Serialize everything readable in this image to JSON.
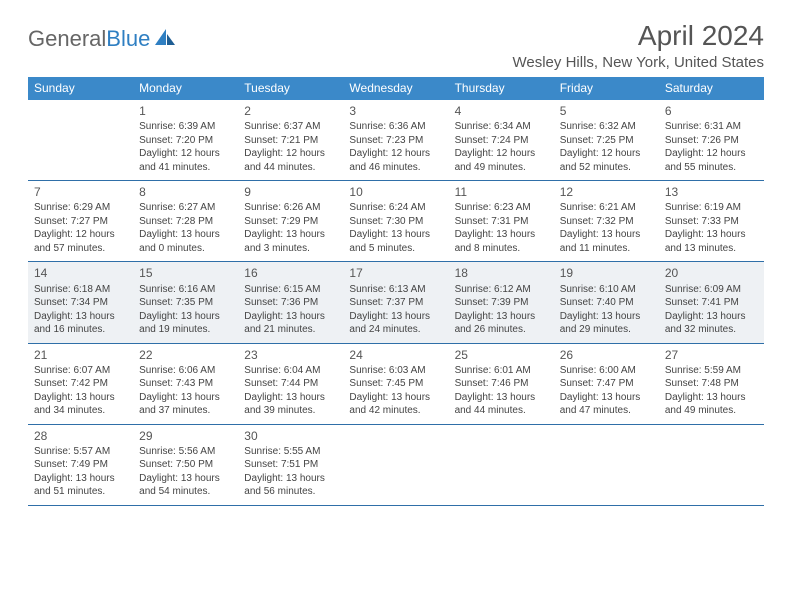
{
  "logo": {
    "part1": "General",
    "part2": "Blue"
  },
  "title": "April 2024",
  "subtitle": "Wesley Hills, New York, United States",
  "colors": {
    "header_bg": "#3b89c9",
    "header_text": "#ffffff",
    "border": "#2f6fa8",
    "shaded_bg": "#eef1f4",
    "body_text": "#444444",
    "page_bg": "#ffffff"
  },
  "weekdays": [
    "Sunday",
    "Monday",
    "Tuesday",
    "Wednesday",
    "Thursday",
    "Friday",
    "Saturday"
  ],
  "weeks": [
    {
      "shaded": false,
      "days": [
        {
          "num": "",
          "lines": [
            "",
            "",
            "",
            ""
          ]
        },
        {
          "num": "1",
          "lines": [
            "Sunrise: 6:39 AM",
            "Sunset: 7:20 PM",
            "Daylight: 12 hours",
            "and 41 minutes."
          ]
        },
        {
          "num": "2",
          "lines": [
            "Sunrise: 6:37 AM",
            "Sunset: 7:21 PM",
            "Daylight: 12 hours",
            "and 44 minutes."
          ]
        },
        {
          "num": "3",
          "lines": [
            "Sunrise: 6:36 AM",
            "Sunset: 7:23 PM",
            "Daylight: 12 hours",
            "and 46 minutes."
          ]
        },
        {
          "num": "4",
          "lines": [
            "Sunrise: 6:34 AM",
            "Sunset: 7:24 PM",
            "Daylight: 12 hours",
            "and 49 minutes."
          ]
        },
        {
          "num": "5",
          "lines": [
            "Sunrise: 6:32 AM",
            "Sunset: 7:25 PM",
            "Daylight: 12 hours",
            "and 52 minutes."
          ]
        },
        {
          "num": "6",
          "lines": [
            "Sunrise: 6:31 AM",
            "Sunset: 7:26 PM",
            "Daylight: 12 hours",
            "and 55 minutes."
          ]
        }
      ]
    },
    {
      "shaded": false,
      "days": [
        {
          "num": "7",
          "lines": [
            "Sunrise: 6:29 AM",
            "Sunset: 7:27 PM",
            "Daylight: 12 hours",
            "and 57 minutes."
          ]
        },
        {
          "num": "8",
          "lines": [
            "Sunrise: 6:27 AM",
            "Sunset: 7:28 PM",
            "Daylight: 13 hours",
            "and 0 minutes."
          ]
        },
        {
          "num": "9",
          "lines": [
            "Sunrise: 6:26 AM",
            "Sunset: 7:29 PM",
            "Daylight: 13 hours",
            "and 3 minutes."
          ]
        },
        {
          "num": "10",
          "lines": [
            "Sunrise: 6:24 AM",
            "Sunset: 7:30 PM",
            "Daylight: 13 hours",
            "and 5 minutes."
          ]
        },
        {
          "num": "11",
          "lines": [
            "Sunrise: 6:23 AM",
            "Sunset: 7:31 PM",
            "Daylight: 13 hours",
            "and 8 minutes."
          ]
        },
        {
          "num": "12",
          "lines": [
            "Sunrise: 6:21 AM",
            "Sunset: 7:32 PM",
            "Daylight: 13 hours",
            "and 11 minutes."
          ]
        },
        {
          "num": "13",
          "lines": [
            "Sunrise: 6:19 AM",
            "Sunset: 7:33 PM",
            "Daylight: 13 hours",
            "and 13 minutes."
          ]
        }
      ]
    },
    {
      "shaded": true,
      "days": [
        {
          "num": "14",
          "lines": [
            "Sunrise: 6:18 AM",
            "Sunset: 7:34 PM",
            "Daylight: 13 hours",
            "and 16 minutes."
          ]
        },
        {
          "num": "15",
          "lines": [
            "Sunrise: 6:16 AM",
            "Sunset: 7:35 PM",
            "Daylight: 13 hours",
            "and 19 minutes."
          ]
        },
        {
          "num": "16",
          "lines": [
            "Sunrise: 6:15 AM",
            "Sunset: 7:36 PM",
            "Daylight: 13 hours",
            "and 21 minutes."
          ]
        },
        {
          "num": "17",
          "lines": [
            "Sunrise: 6:13 AM",
            "Sunset: 7:37 PM",
            "Daylight: 13 hours",
            "and 24 minutes."
          ]
        },
        {
          "num": "18",
          "lines": [
            "Sunrise: 6:12 AM",
            "Sunset: 7:39 PM",
            "Daylight: 13 hours",
            "and 26 minutes."
          ]
        },
        {
          "num": "19",
          "lines": [
            "Sunrise: 6:10 AM",
            "Sunset: 7:40 PM",
            "Daylight: 13 hours",
            "and 29 minutes."
          ]
        },
        {
          "num": "20",
          "lines": [
            "Sunrise: 6:09 AM",
            "Sunset: 7:41 PM",
            "Daylight: 13 hours",
            "and 32 minutes."
          ]
        }
      ]
    },
    {
      "shaded": false,
      "days": [
        {
          "num": "21",
          "lines": [
            "Sunrise: 6:07 AM",
            "Sunset: 7:42 PM",
            "Daylight: 13 hours",
            "and 34 minutes."
          ]
        },
        {
          "num": "22",
          "lines": [
            "Sunrise: 6:06 AM",
            "Sunset: 7:43 PM",
            "Daylight: 13 hours",
            "and 37 minutes."
          ]
        },
        {
          "num": "23",
          "lines": [
            "Sunrise: 6:04 AM",
            "Sunset: 7:44 PM",
            "Daylight: 13 hours",
            "and 39 minutes."
          ]
        },
        {
          "num": "24",
          "lines": [
            "Sunrise: 6:03 AM",
            "Sunset: 7:45 PM",
            "Daylight: 13 hours",
            "and 42 minutes."
          ]
        },
        {
          "num": "25",
          "lines": [
            "Sunrise: 6:01 AM",
            "Sunset: 7:46 PM",
            "Daylight: 13 hours",
            "and 44 minutes."
          ]
        },
        {
          "num": "26",
          "lines": [
            "Sunrise: 6:00 AM",
            "Sunset: 7:47 PM",
            "Daylight: 13 hours",
            "and 47 minutes."
          ]
        },
        {
          "num": "27",
          "lines": [
            "Sunrise: 5:59 AM",
            "Sunset: 7:48 PM",
            "Daylight: 13 hours",
            "and 49 minutes."
          ]
        }
      ]
    },
    {
      "shaded": false,
      "days": [
        {
          "num": "28",
          "lines": [
            "Sunrise: 5:57 AM",
            "Sunset: 7:49 PM",
            "Daylight: 13 hours",
            "and 51 minutes."
          ]
        },
        {
          "num": "29",
          "lines": [
            "Sunrise: 5:56 AM",
            "Sunset: 7:50 PM",
            "Daylight: 13 hours",
            "and 54 minutes."
          ]
        },
        {
          "num": "30",
          "lines": [
            "Sunrise: 5:55 AM",
            "Sunset: 7:51 PM",
            "Daylight: 13 hours",
            "and 56 minutes."
          ]
        },
        {
          "num": "",
          "lines": [
            "",
            "",
            "",
            ""
          ]
        },
        {
          "num": "",
          "lines": [
            "",
            "",
            "",
            ""
          ]
        },
        {
          "num": "",
          "lines": [
            "",
            "",
            "",
            ""
          ]
        },
        {
          "num": "",
          "lines": [
            "",
            "",
            "",
            ""
          ]
        }
      ]
    }
  ]
}
